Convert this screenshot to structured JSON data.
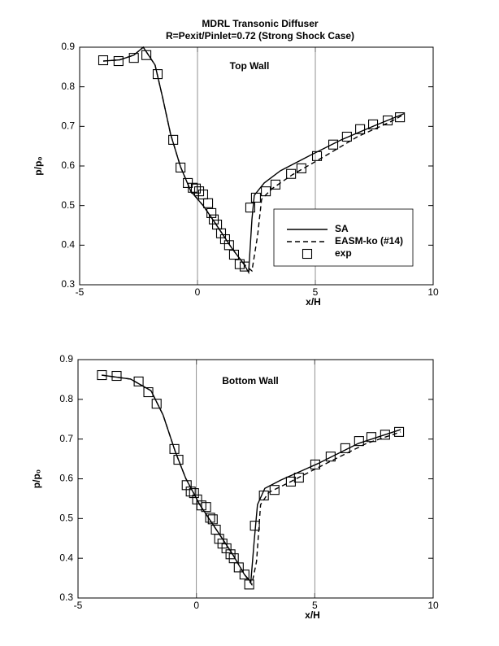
{
  "chart_data": [
    {
      "type": "line",
      "title": "MDRL Transonic Diffuser",
      "subtitle": "R=Pexit/Pinlet=0.72 (Strong Shock Case)",
      "annotation": "Top Wall",
      "x_label": "x/H",
      "y_label": "p/p₀",
      "xlim": [
        -5,
        10
      ],
      "xticks": [
        -5,
        0,
        5,
        10
      ],
      "ylim": [
        0.3,
        0.9
      ],
      "yticks": [
        0.3,
        0.4,
        0.5,
        0.6,
        0.7,
        0.8,
        0.9
      ],
      "grid": "x",
      "legend": "lower right",
      "series": [
        {
          "name": "SA",
          "color": "#000000",
          "style": "solid",
          "x": [
            -4.0,
            -3.3,
            -2.7,
            -2.3,
            -1.8,
            -1.48,
            -1.14,
            -0.72,
            -0.28,
            0.24,
            0.76,
            1.45,
            1.97,
            2.17,
            2.31,
            2.41,
            2.83,
            3.52,
            4.72,
            6.1,
            7.48,
            8.76
          ],
          "values": [
            0.865,
            0.868,
            0.88,
            0.9,
            0.855,
            0.773,
            0.68,
            0.598,
            0.536,
            0.5,
            0.455,
            0.393,
            0.352,
            0.331,
            0.465,
            0.526,
            0.557,
            0.588,
            0.625,
            0.666,
            0.701,
            0.732
          ]
        },
        {
          "name": "EASM-ko (#14)",
          "color": "#000000",
          "style": "dashed",
          "x": [
            -4.0,
            -3.3,
            -2.7,
            -2.3,
            -1.8,
            -1.48,
            -1.14,
            -0.72,
            -0.28,
            0.24,
            0.76,
            1.45,
            1.97,
            2.31,
            2.55,
            2.72,
            3.17,
            4.03,
            5.41,
            6.79,
            8.17,
            8.76
          ],
          "values": [
            0.865,
            0.868,
            0.88,
            0.9,
            0.855,
            0.773,
            0.68,
            0.598,
            0.536,
            0.5,
            0.455,
            0.393,
            0.352,
            0.335,
            0.424,
            0.516,
            0.543,
            0.578,
            0.625,
            0.674,
            0.711,
            0.73
          ]
        },
        {
          "name": "exp",
          "color": "#000000",
          "style": "markers",
          "x": [
            -4.0,
            -3.35,
            -2.7,
            -2.17,
            -1.69,
            -1.03,
            -0.72,
            -0.41,
            -0.2,
            -0.07,
            0.07,
            0.24,
            0.45,
            0.59,
            0.69,
            0.83,
            1.0,
            1.17,
            1.34,
            1.55,
            1.79,
            2.0,
            2.24,
            2.48,
            2.9,
            3.31,
            3.97,
            4.41,
            5.07,
            5.76,
            6.34,
            6.9,
            7.45,
            8.07,
            8.59
          ],
          "values": [
            0.867,
            0.865,
            0.873,
            0.88,
            0.832,
            0.666,
            0.596,
            0.557,
            0.545,
            0.543,
            0.536,
            0.528,
            0.506,
            0.481,
            0.465,
            0.452,
            0.43,
            0.415,
            0.4,
            0.376,
            0.352,
            0.346,
            0.495,
            0.52,
            0.536,
            0.553,
            0.58,
            0.594,
            0.625,
            0.654,
            0.674,
            0.693,
            0.705,
            0.715,
            0.723
          ]
        }
      ]
    },
    {
      "type": "line",
      "annotation": "Bottom Wall",
      "x_label": "x/H",
      "y_label": "p/p₀",
      "xlim": [
        -5,
        10
      ],
      "xticks": [
        -5,
        0,
        5,
        10
      ],
      "ylim": [
        0.3,
        0.9
      ],
      "yticks": [
        0.3,
        0.4,
        0.5,
        0.6,
        0.7,
        0.8,
        0.9
      ],
      "grid": "x",
      "series": [
        {
          "name": "SA",
          "color": "#000000",
          "style": "solid",
          "x": [
            -4.0,
            -2.78,
            -1.92,
            -1.41,
            -0.89,
            -0.45,
            0.14,
            0.82,
            1.51,
            2.03,
            2.3,
            2.44,
            2.58,
            2.89,
            3.57,
            5.12,
            6.84,
            8.63
          ],
          "values": [
            0.861,
            0.851,
            0.822,
            0.761,
            0.668,
            0.601,
            0.535,
            0.474,
            0.412,
            0.359,
            0.341,
            0.443,
            0.535,
            0.576,
            0.597,
            0.638,
            0.689,
            0.724
          ]
        },
        {
          "name": "EASM-ko (#14)",
          "color": "#000000",
          "style": "dashed",
          "x": [
            -4.0,
            -2.78,
            -1.92,
            -1.41,
            -0.89,
            -0.45,
            0.14,
            0.82,
            1.51,
            2.03,
            2.34,
            2.54,
            2.71,
            3.06,
            3.92,
            5.46,
            7.18,
            8.63
          ],
          "values": [
            0.861,
            0.851,
            0.822,
            0.761,
            0.668,
            0.601,
            0.535,
            0.474,
            0.412,
            0.359,
            0.334,
            0.392,
            0.535,
            0.566,
            0.591,
            0.638,
            0.689,
            0.718
          ]
        },
        {
          "name": "exp",
          "color": "#000000",
          "style": "markers",
          "x": [
            -3.99,
            -3.37,
            -2.44,
            -2.03,
            -1.68,
            -0.93,
            -0.76,
            -0.41,
            -0.24,
            -0.1,
            0.03,
            0.21,
            0.41,
            0.58,
            0.69,
            0.82,
            0.96,
            1.1,
            1.27,
            1.44,
            1.58,
            1.79,
            2.03,
            2.23,
            2.47,
            2.85,
            3.3,
            3.99,
            4.33,
            5.02,
            5.67,
            6.29,
            6.87,
            7.39,
            7.97,
            8.56
          ],
          "values": [
            0.861,
            0.859,
            0.845,
            0.818,
            0.789,
            0.675,
            0.648,
            0.584,
            0.568,
            0.564,
            0.548,
            0.533,
            0.529,
            0.502,
            0.498,
            0.472,
            0.449,
            0.437,
            0.425,
            0.41,
            0.4,
            0.377,
            0.359,
            0.334,
            0.482,
            0.558,
            0.572,
            0.593,
            0.603,
            0.636,
            0.656,
            0.677,
            0.695,
            0.705,
            0.711,
            0.718
          ]
        }
      ]
    }
  ]
}
